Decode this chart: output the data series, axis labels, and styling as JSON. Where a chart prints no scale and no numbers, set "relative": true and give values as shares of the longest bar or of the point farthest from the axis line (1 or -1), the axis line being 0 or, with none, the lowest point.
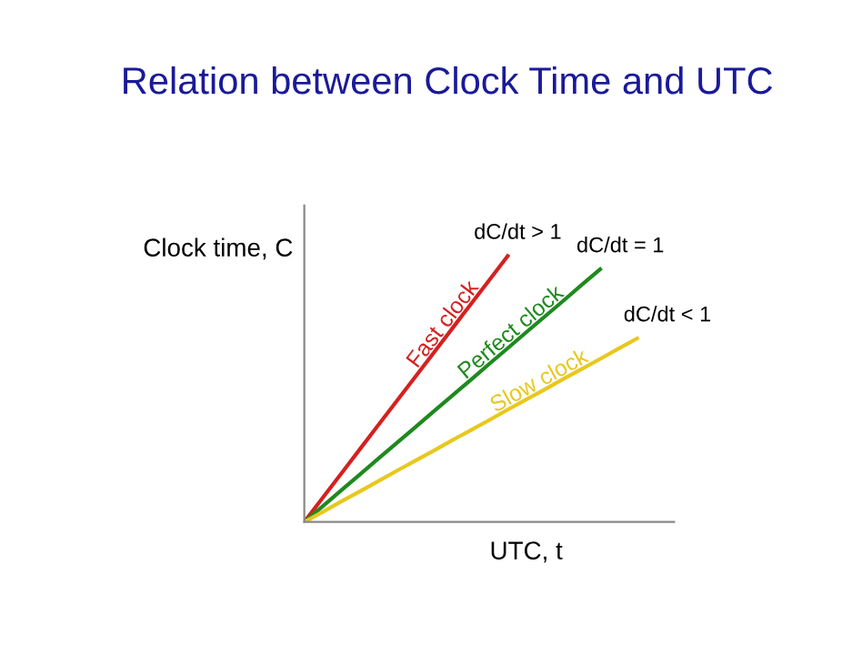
{
  "chart_data": {
    "type": "line",
    "title": "Relation between Clock Time and UTC",
    "xlabel": "UTC, t",
    "ylabel": "Clock time, C",
    "relative": true,
    "marker": "none",
    "line_style": "solid",
    "categories": [
      null,
      null,
      null,
      null,
      null,
      null,
      null,
      null,
      null,
      null,
      null,
      null,
      null,
      null,
      null,
      null,
      null,
      null,
      null
    ],
    "series": [
      {
        "name": "Fast clock",
        "color": "#d62020",
        "values": [
          0,
          0.091,
          0.182,
          0.273,
          0.364,
          0.455,
          0.545,
          0.636,
          0.727,
          0.818,
          0.909,
          1,
          null,
          null,
          null,
          null,
          null,
          null,
          null
        ]
      },
      {
        "name": "Perfect clock",
        "color": "#1e8a1e",
        "values": [
          0,
          0.059,
          0.119,
          0.178,
          0.238,
          0.297,
          0.356,
          0.416,
          0.475,
          0.534,
          0.594,
          0.653,
          0.713,
          0.772,
          0.831,
          0.891,
          0.95,
          null,
          null
        ]
      },
      {
        "name": "Slow clock",
        "color": "#e8c81e",
        "values": [
          0,
          0.038,
          0.077,
          0.115,
          0.153,
          0.192,
          0.23,
          0.268,
          0.307,
          0.345,
          0.383,
          0.422,
          0.46,
          0.498,
          0.537,
          0.575,
          0.613,
          0.652,
          0.69
        ]
      }
    ],
    "annotations": [
      "dC/dt > 1",
      "dC/dt = 1",
      "dC/dt < 1"
    ]
  }
}
